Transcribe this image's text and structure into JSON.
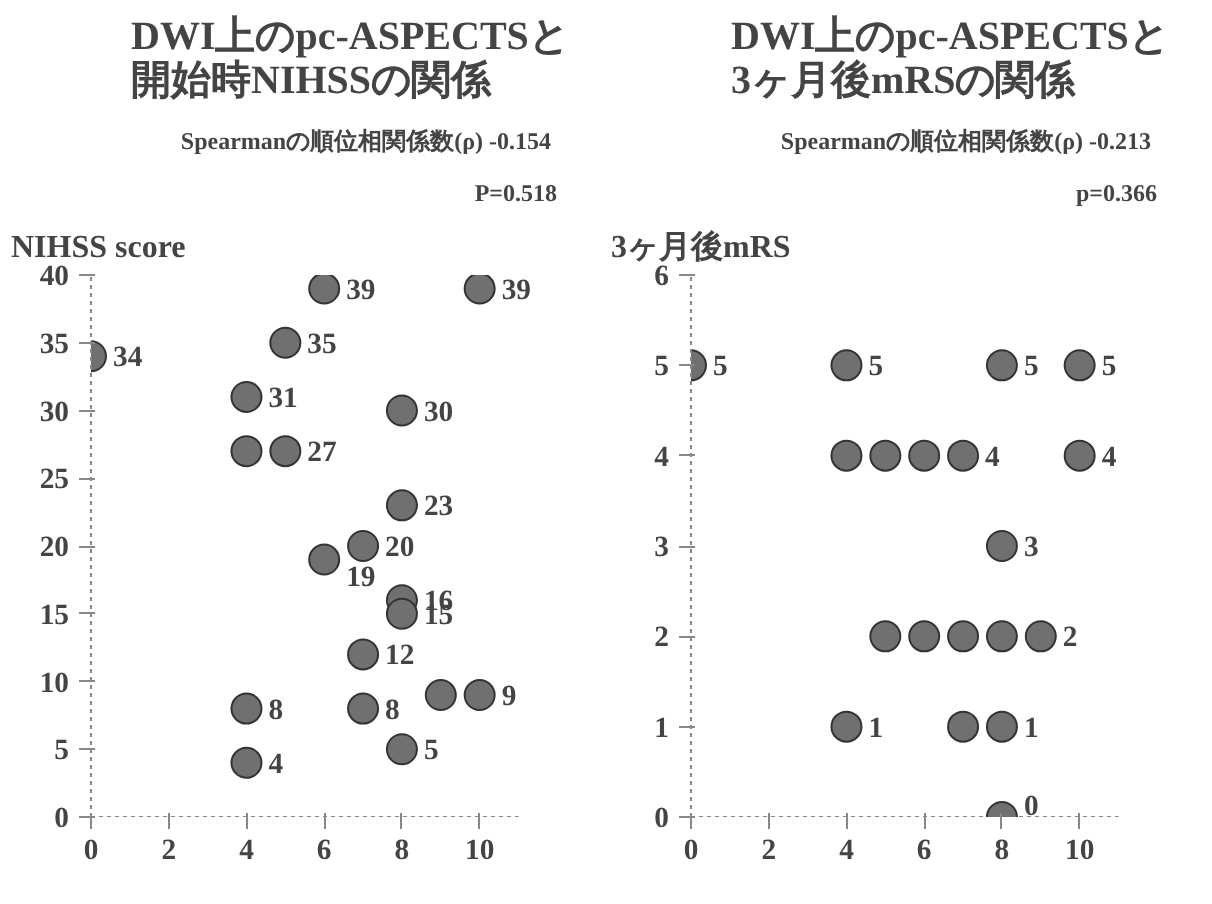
{
  "chart_data": [
    {
      "type": "scatter",
      "title": "DWI上のpc-ASPECTSと開始時NIHSSの関係",
      "ylabel": "NIHSS score",
      "annotations": [
        "Spearmanの順位相関係数(ρ)  -0.154",
        "P=0.518"
      ],
      "x": [
        0,
        4,
        4,
        5,
        4,
        4,
        5,
        6,
        6,
        7,
        7,
        7,
        8,
        8,
        8,
        8,
        8,
        9,
        10,
        10
      ],
      "series": [
        {
          "color": "#707070",
          "values": [
            34,
            31,
            27,
            27,
            8,
            4,
            35,
            39,
            19,
            20,
            12,
            8,
            30,
            23,
            16,
            15,
            5,
            9,
            9,
            39
          ],
          "value_labels": [
            "34",
            "31",
            null,
            "27",
            "8",
            "4",
            "35",
            "39",
            "19",
            "20",
            "12",
            "8",
            "30",
            "23",
            "16",
            "15",
            "5",
            null,
            "9",
            "39"
          ]
        }
      ],
      "xlim": [
        0,
        11
      ],
      "ylim": [
        0,
        40
      ],
      "xticks": [
        0,
        2,
        4,
        6,
        8,
        10
      ],
      "yticks": [
        0,
        5,
        10,
        15,
        20,
        25,
        30,
        35,
        40
      ],
      "marker": "circle",
      "grid": false
    },
    {
      "type": "scatter",
      "title": "DWI上のpc-ASPECTSと3ヶ月後mRSの関係",
      "ylabel": "3ヶ月後mRS",
      "annotations": [
        "Spearmanの順位相関係数(ρ)  -0.213",
        "p=0.366"
      ],
      "x": [
        0,
        4,
        8,
        10,
        4,
        5,
        6,
        7,
        10,
        8,
        5,
        6,
        7,
        8,
        9,
        4,
        7,
        8,
        8
      ],
      "series": [
        {
          "color": "#707070",
          "values": [
            5,
            5,
            5,
            5,
            4,
            4,
            4,
            4,
            4,
            3,
            2,
            2,
            2,
            2,
            2,
            1,
            1,
            1,
            0
          ],
          "value_labels": [
            "5",
            "5",
            "5",
            "5",
            null,
            null,
            null,
            "4",
            "4",
            "3",
            null,
            null,
            null,
            null,
            "2",
            "1",
            null,
            "1",
            "0"
          ]
        }
      ],
      "xlim": [
        0,
        11
      ],
      "ylim": [
        0,
        6
      ],
      "xticks": [
        0,
        2,
        4,
        6,
        8,
        10
      ],
      "yticks": [
        0,
        1,
        2,
        3,
        4,
        5,
        6
      ],
      "marker": "circle",
      "grid": false
    }
  ]
}
